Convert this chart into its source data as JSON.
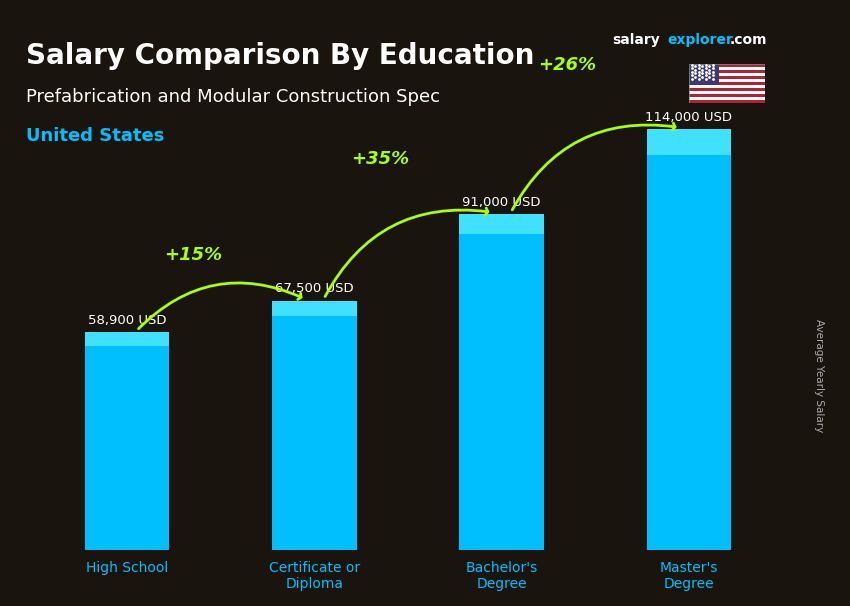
{
  "title_salary": "Salary Comparison By Education",
  "subtitle": "Prefabrication and Modular Construction Spec",
  "country": "United States",
  "categories": [
    "High School",
    "Certificate or\nDiploma",
    "Bachelor's\nDegree",
    "Master's\nDegree"
  ],
  "values": [
    58900,
    67500,
    91000,
    114000
  ],
  "value_labels": [
    "58,900 USD",
    "67,500 USD",
    "91,000 USD",
    "114,000 USD"
  ],
  "pct_changes": [
    "+15%",
    "+35%",
    "+26%"
  ],
  "bar_color": "#00BFFF",
  "bar_color_top": "#00D4FF",
  "pct_color": "#AAFF00",
  "title_color": "#FFFFFF",
  "subtitle_color": "#FFFFFF",
  "country_color": "#00BFFF",
  "value_label_color": "#FFFFFF",
  "ylabel_text": "Average Yearly Salary",
  "ylabel_color": "#AAAAAA",
  "watermark_salary": "salary",
  "watermark_explorer": "explorer",
  "watermark_com": ".com",
  "background_alpha": 0.55
}
